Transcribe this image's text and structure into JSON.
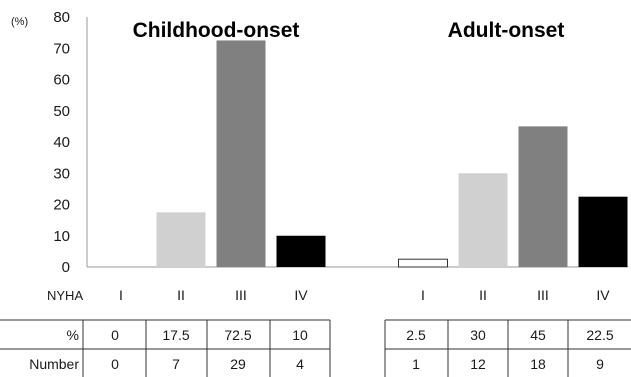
{
  "chart_data": {
    "type": "bar",
    "unit_label": "(%)",
    "ylim": [
      0,
      80
    ],
    "yticks": [
      0,
      10,
      20,
      30,
      40,
      50,
      60,
      70,
      80
    ],
    "categories": [
      "I",
      "II",
      "III",
      "IV"
    ],
    "category_axis_label": "NYHA",
    "bar_colors": [
      "#ffffff",
      "#d0d0d0",
      "#808080",
      "#000000"
    ],
    "groups": [
      {
        "title": "Childhood-onset",
        "values": [
          0,
          17.5,
          72.5,
          10
        ],
        "percent_labels": [
          "0",
          "17.5",
          "72.5",
          "10"
        ],
        "numbers": [
          "0",
          "7",
          "29",
          "4"
        ]
      },
      {
        "title": "Adult-onset",
        "values": [
          2.5,
          30,
          45,
          22.5
        ],
        "percent_labels": [
          "2.5",
          "30",
          "45",
          "22.5"
        ],
        "numbers": [
          "1",
          "12",
          "18",
          "9"
        ]
      }
    ],
    "table_row_labels": [
      "%",
      "Number"
    ]
  }
}
